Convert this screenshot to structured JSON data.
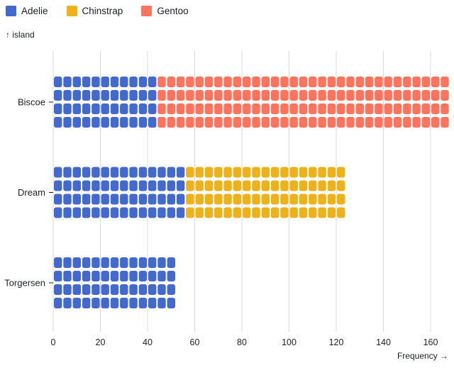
{
  "legend": {
    "items": [
      {
        "label": "Adelie",
        "color": "#4269d0"
      },
      {
        "label": "Chinstrap",
        "color": "#efb118"
      },
      {
        "label": "Gentoo",
        "color": "#ff725c"
      }
    ]
  },
  "axes": {
    "y_label": "↑ island",
    "x_label": "Frequency →"
  },
  "chart_data": {
    "type": "waffle",
    "orientation": "horizontal",
    "unit": 1,
    "rows_per_category": 4,
    "title": "",
    "xlabel": "Frequency →",
    "ylabel": "↑ island",
    "categories": [
      "Biscoe",
      "Dream",
      "Torgersen"
    ],
    "series": [
      {
        "name": "Adelie",
        "color": "#4269d0",
        "values": [
          44,
          56,
          52
        ]
      },
      {
        "name": "Chinstrap",
        "color": "#efb118",
        "values": [
          0,
          68,
          0
        ]
      },
      {
        "name": "Gentoo",
        "color": "#ff725c",
        "values": [
          124,
          0,
          0
        ]
      }
    ],
    "totals": [
      168,
      124,
      52
    ],
    "x_ticks": [
      0,
      20,
      40,
      60,
      80,
      100,
      120,
      140,
      160
    ],
    "xlim": [
      0,
      170
    ],
    "grid": true,
    "legend_position": "top-left"
  },
  "colors": {
    "text": "#1b1e23",
    "grid": "#d8d8d8",
    "background": "#ffffff"
  }
}
